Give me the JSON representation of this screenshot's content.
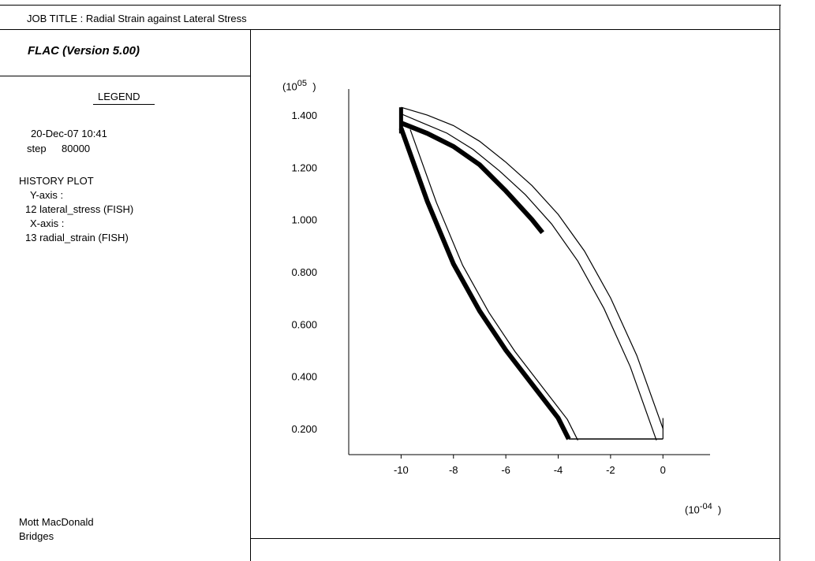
{
  "header": {
    "job_title": "JOB TITLE : Radial Strain against Lateral Stress"
  },
  "legend_panel": {
    "software": "FLAC (Version 5.00)",
    "legend_heading": "LEGEND",
    "date_time": "20-Dec-07  10:41",
    "step_label": "step",
    "step_value": "80000",
    "history_plot": "HISTORY PLOT",
    "y_axis_label": "Y-axis :",
    "y_axis_item": "12 lateral_stress (FISH)",
    "x_axis_label": "X-axis :",
    "x_axis_item": "13  radial_strain  (FISH)",
    "company_line1": "Mott MacDonald",
    "company_line2": "Bridges"
  },
  "chart_data": {
    "type": "line",
    "y_multiplier": "(10",
    "y_multiplier_exp": "05",
    "x_multiplier": "(10",
    "x_multiplier_exp": "-04",
    "ylim": [
      0.1,
      1.5
    ],
    "xlim": [
      -12,
      1.8
    ],
    "yticks": [
      0.2,
      0.4,
      0.6,
      0.8,
      1.0,
      1.2,
      1.4
    ],
    "ytick_labels": [
      "0.200",
      "0.400",
      "0.600",
      "0.800",
      "1.000",
      "1.200",
      "1.400"
    ],
    "xticks": [
      -10,
      -8,
      -6,
      -4,
      -2,
      0
    ],
    "xtick_labels": [
      "-10",
      "-8",
      "-6",
      "-4",
      "-2",
      "0"
    ],
    "series": [
      {
        "role": "loading-unloading loop band",
        "color": "#000000",
        "thickness": "dense",
        "x_upper": [
          -10.0,
          -9.0,
          -8.0,
          -7.0,
          -6.0,
          -5.0,
          -4.0,
          -3.0,
          -2.0,
          -1.0,
          0.0
        ],
        "y_upper": [
          1.43,
          1.4,
          1.36,
          1.3,
          1.22,
          1.13,
          1.02,
          0.88,
          0.7,
          0.48,
          0.2
        ],
        "x_lower": [
          -10.0,
          -9.0,
          -8.0,
          -7.0,
          -6.0,
          -5.0,
          -4.0,
          -3.6
        ],
        "y_lower": [
          1.35,
          1.07,
          0.83,
          0.65,
          0.5,
          0.37,
          0.24,
          0.16
        ],
        "x_base": [
          -3.6,
          0.0
        ],
        "y_base": [
          0.16,
          0.16
        ]
      }
    ],
    "grid": false
  }
}
